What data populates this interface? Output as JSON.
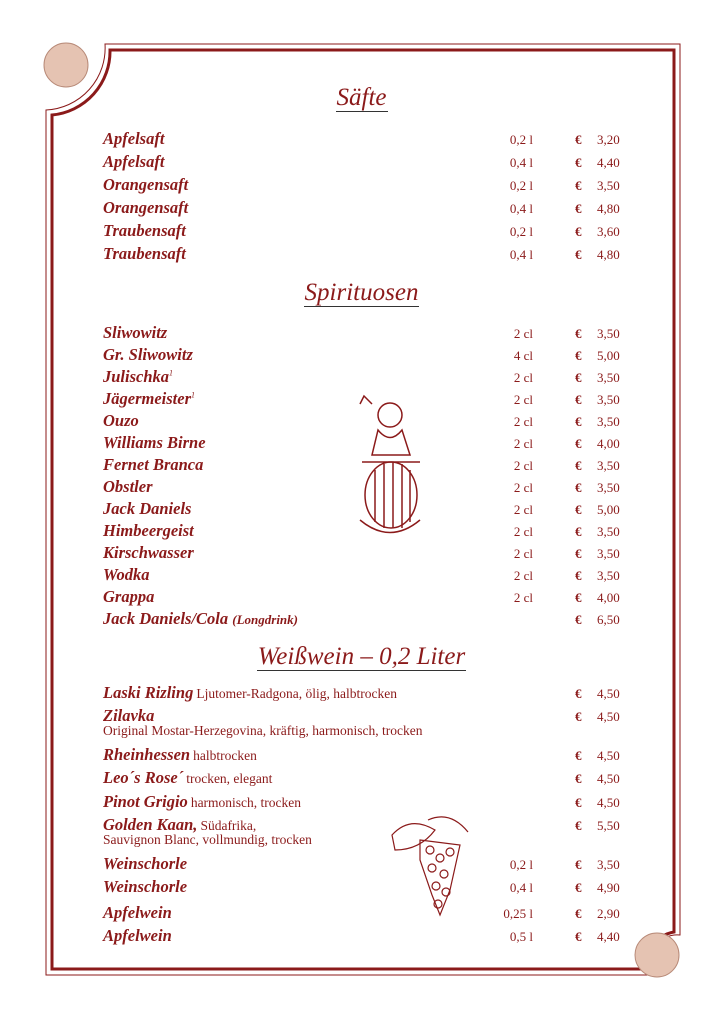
{
  "colors": {
    "accent": "#8b1a1a",
    "circle": "#e5c3b2"
  },
  "sections": [
    {
      "title": "Säfte",
      "items": [
        {
          "name": "Apfelsaft",
          "volume": "0,2 l",
          "currency": "€",
          "price": "3,20"
        },
        {
          "name": "Apfelsaft",
          "volume": "0,4 l",
          "currency": "€",
          "price": "4,40"
        },
        {
          "name": "Orangensaft",
          "volume": "0,2 l",
          "currency": "€",
          "price": "3,50"
        },
        {
          "name": "Orangensaft",
          "volume": "0,4 l",
          "currency": "€",
          "price": "4,80"
        },
        {
          "name": "Traubensaft",
          "volume": "0,2 l",
          "currency": "€",
          "price": "3,60"
        },
        {
          "name": "Traubensaft",
          "volume": "0,4 l",
          "currency": "€",
          "price": "4,80"
        }
      ]
    },
    {
      "title": "Spirituosen",
      "items": [
        {
          "name": "Sliwowitz",
          "volume": "2 cl",
          "currency": "€",
          "price": "3,50"
        },
        {
          "name": "Gr. Sliwowitz",
          "volume": "4 cl",
          "currency": "€",
          "price": "5,00"
        },
        {
          "name": "Julischka",
          "sup": "1",
          "volume": "2 cl",
          "currency": "€",
          "price": "3,50"
        },
        {
          "name": "Jägermeister",
          "sup": "1",
          "volume": "2 cl",
          "currency": "€",
          "price": "3,50"
        },
        {
          "name": "Ouzo",
          "volume": "2 cl",
          "currency": "€",
          "price": "3,50"
        },
        {
          "name": "Williams Birne",
          "volume": "2 cl",
          "currency": "€",
          "price": "4,00"
        },
        {
          "name": "Fernet Branca",
          "volume": "2 cl",
          "currency": "€",
          "price": "3,50"
        },
        {
          "name": "Obstler",
          "volume": "2 cl",
          "currency": "€",
          "price": "3,50"
        },
        {
          "name": "Jack Daniels",
          "volume": "2 cl",
          "currency": "€",
          "price": "5,00"
        },
        {
          "name": "Himbeergeist",
          "volume": "2 cl",
          "currency": "€",
          "price": "3,50"
        },
        {
          "name": "Kirschwasser",
          "volume": "2 cl",
          "currency": "€",
          "price": "3,50"
        },
        {
          "name": "Wodka",
          "volume": "2 cl",
          "currency": "€",
          "price": "3,50"
        },
        {
          "name": "Grappa",
          "volume": "2 cl",
          "currency": "€",
          "price": "4,00"
        },
        {
          "name": "Jack Daniels/Cola",
          "small": "(Longdrink)",
          "currency": "€",
          "price": "6,50"
        }
      ]
    },
    {
      "title": "Weißwein – 0,2 Liter",
      "items": [
        {
          "name": "Laski Rizling",
          "note": "Ljutomer-Radgona, ölig, halbtrocken",
          "currency": "€",
          "price": "4,50"
        },
        {
          "name": "Zilavka",
          "desc": "Original Mostar-Herzegovina, kräftig, harmonisch, trocken",
          "currency": "€",
          "price": "4,50"
        },
        {
          "name": "Rheinhessen",
          "note": "halbtrocken",
          "currency": "€",
          "price": "4,50"
        },
        {
          "name": "Leo´s Rose´",
          "note": "trocken, elegant",
          "currency": "€",
          "price": "4,50"
        },
        {
          "name": "Pinot Grigio",
          "note": "harmonisch, trocken",
          "currency": "€",
          "price": "4,50"
        },
        {
          "name": "Golden Kaan,",
          "note": "Südafrika,",
          "desc": "Sauvignon Blanc, vollmundig, trocken",
          "currency": "€",
          "price": "5,50"
        },
        {
          "name": "Weinschorle",
          "volume": "0,2 l",
          "currency": "€",
          "price": "3,50"
        },
        {
          "name": "Weinschorle",
          "volume": "0,4 l",
          "currency": "€",
          "price": "4,90"
        },
        {
          "name": "Apfelwein",
          "volume": "0,25 l",
          "currency": "€",
          "price": "2,90"
        },
        {
          "name": "Apfelwein",
          "volume": "0,5 l",
          "currency": "€",
          "price": "4,40"
        }
      ]
    }
  ]
}
